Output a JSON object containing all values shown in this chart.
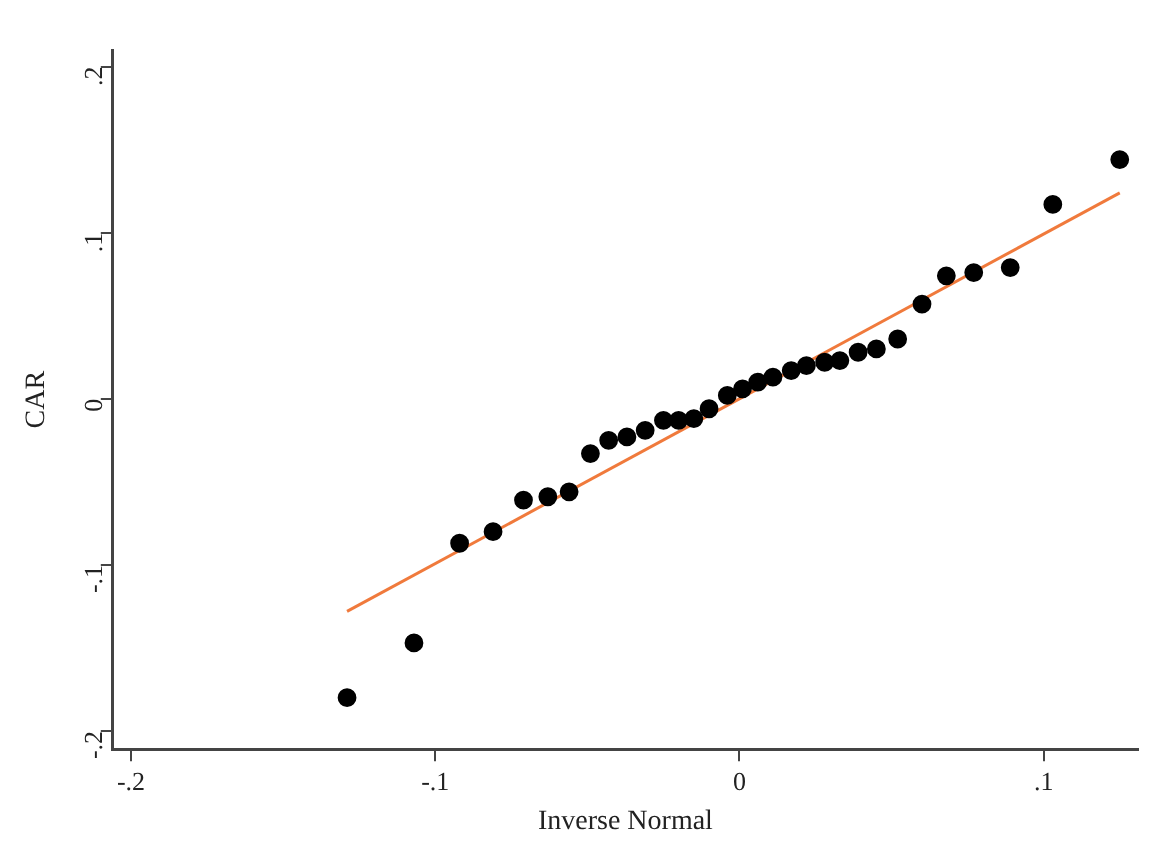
{
  "chart_data": {
    "type": "scatter",
    "xlabel": "Inverse Normal",
    "ylabel": "CAR",
    "xlim": [
      -0.206,
      0.131
    ],
    "ylim": [
      -0.211,
      0.21
    ],
    "xticks": [
      {
        "value": -0.2,
        "label": "-.2"
      },
      {
        "value": -0.1,
        "label": "-.1"
      },
      0,
      {
        "value": 0.1,
        "label": ".1"
      }
    ],
    "yticks": [
      {
        "value": -0.2,
        "label": "-.2"
      },
      {
        "value": -0.1,
        "label": "-.1"
      },
      0,
      {
        "value": 0.1,
        "label": ".1"
      },
      {
        "value": 0.2,
        "label": ".2"
      }
    ],
    "legend": false,
    "series": [
      {
        "marker": "circle",
        "color": "#000000",
        "x": [
          -0.129,
          -0.107,
          -0.092,
          -0.081,
          -0.071,
          -0.063,
          -0.056,
          -0.049,
          -0.043,
          -0.037,
          -0.031,
          -0.025,
          -0.02,
          -0.015,
          -0.01,
          -0.004,
          0.001,
          0.006,
          0.011,
          0.017,
          0.022,
          0.028,
          0.033,
          0.039,
          0.045,
          0.052,
          0.06,
          0.068,
          0.077,
          0.089,
          0.103,
          0.125
        ],
        "values": [
          -0.18,
          -0.147,
          -0.087,
          -0.08,
          -0.061,
          -0.059,
          -0.056,
          -0.033,
          -0.025,
          -0.023,
          -0.019,
          -0.013,
          -0.013,
          -0.012,
          -0.006,
          0.002,
          0.006,
          0.01,
          0.013,
          0.017,
          0.02,
          0.022,
          0.023,
          0.028,
          0.03,
          0.036,
          0.057,
          0.074,
          0.076,
          0.079,
          0.117,
          0.144
        ]
      },
      {
        "type": "line",
        "marker": "none",
        "color": "#f07a3c",
        "line_style": "solid",
        "x": [
          -0.129,
          0.125
        ],
        "values": [
          -0.128,
          0.124
        ]
      }
    ]
  }
}
